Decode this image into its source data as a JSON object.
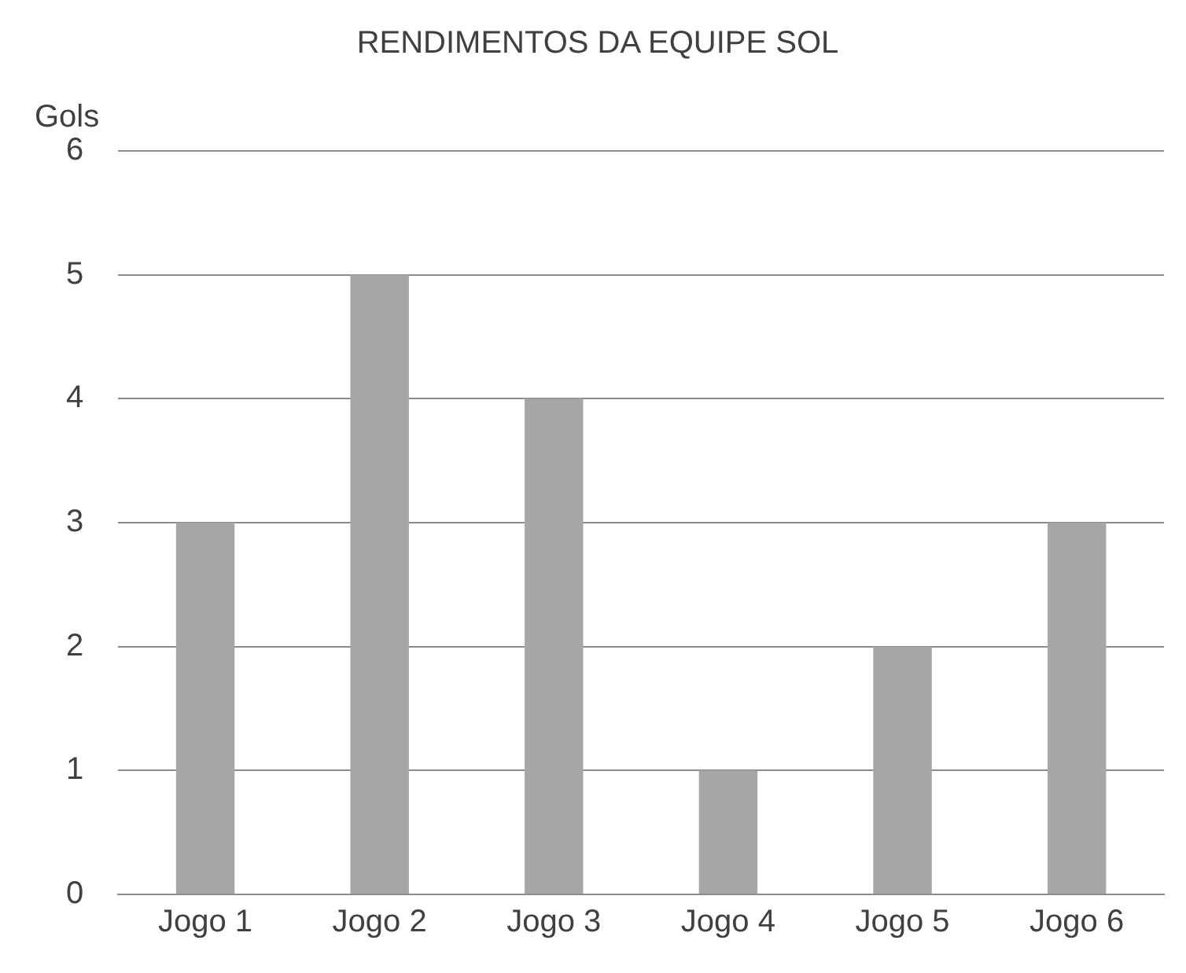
{
  "chart_data": {
    "type": "bar",
    "title": "RENDIMENTOS DA EQUIPE SOL",
    "ylabel": "Gols",
    "categories": [
      "Jogo 1",
      "Jogo 2",
      "Jogo 3",
      "Jogo 4",
      "Jogo 5",
      "Jogo 6"
    ],
    "values": [
      3,
      5,
      4,
      1,
      2,
      3
    ],
    "color": "#a6a6a6",
    "ylim": [
      0,
      6
    ],
    "yticks": [
      0,
      1,
      2,
      3,
      4,
      5,
      6
    ],
    "grid": "y",
    "legend": false
  }
}
